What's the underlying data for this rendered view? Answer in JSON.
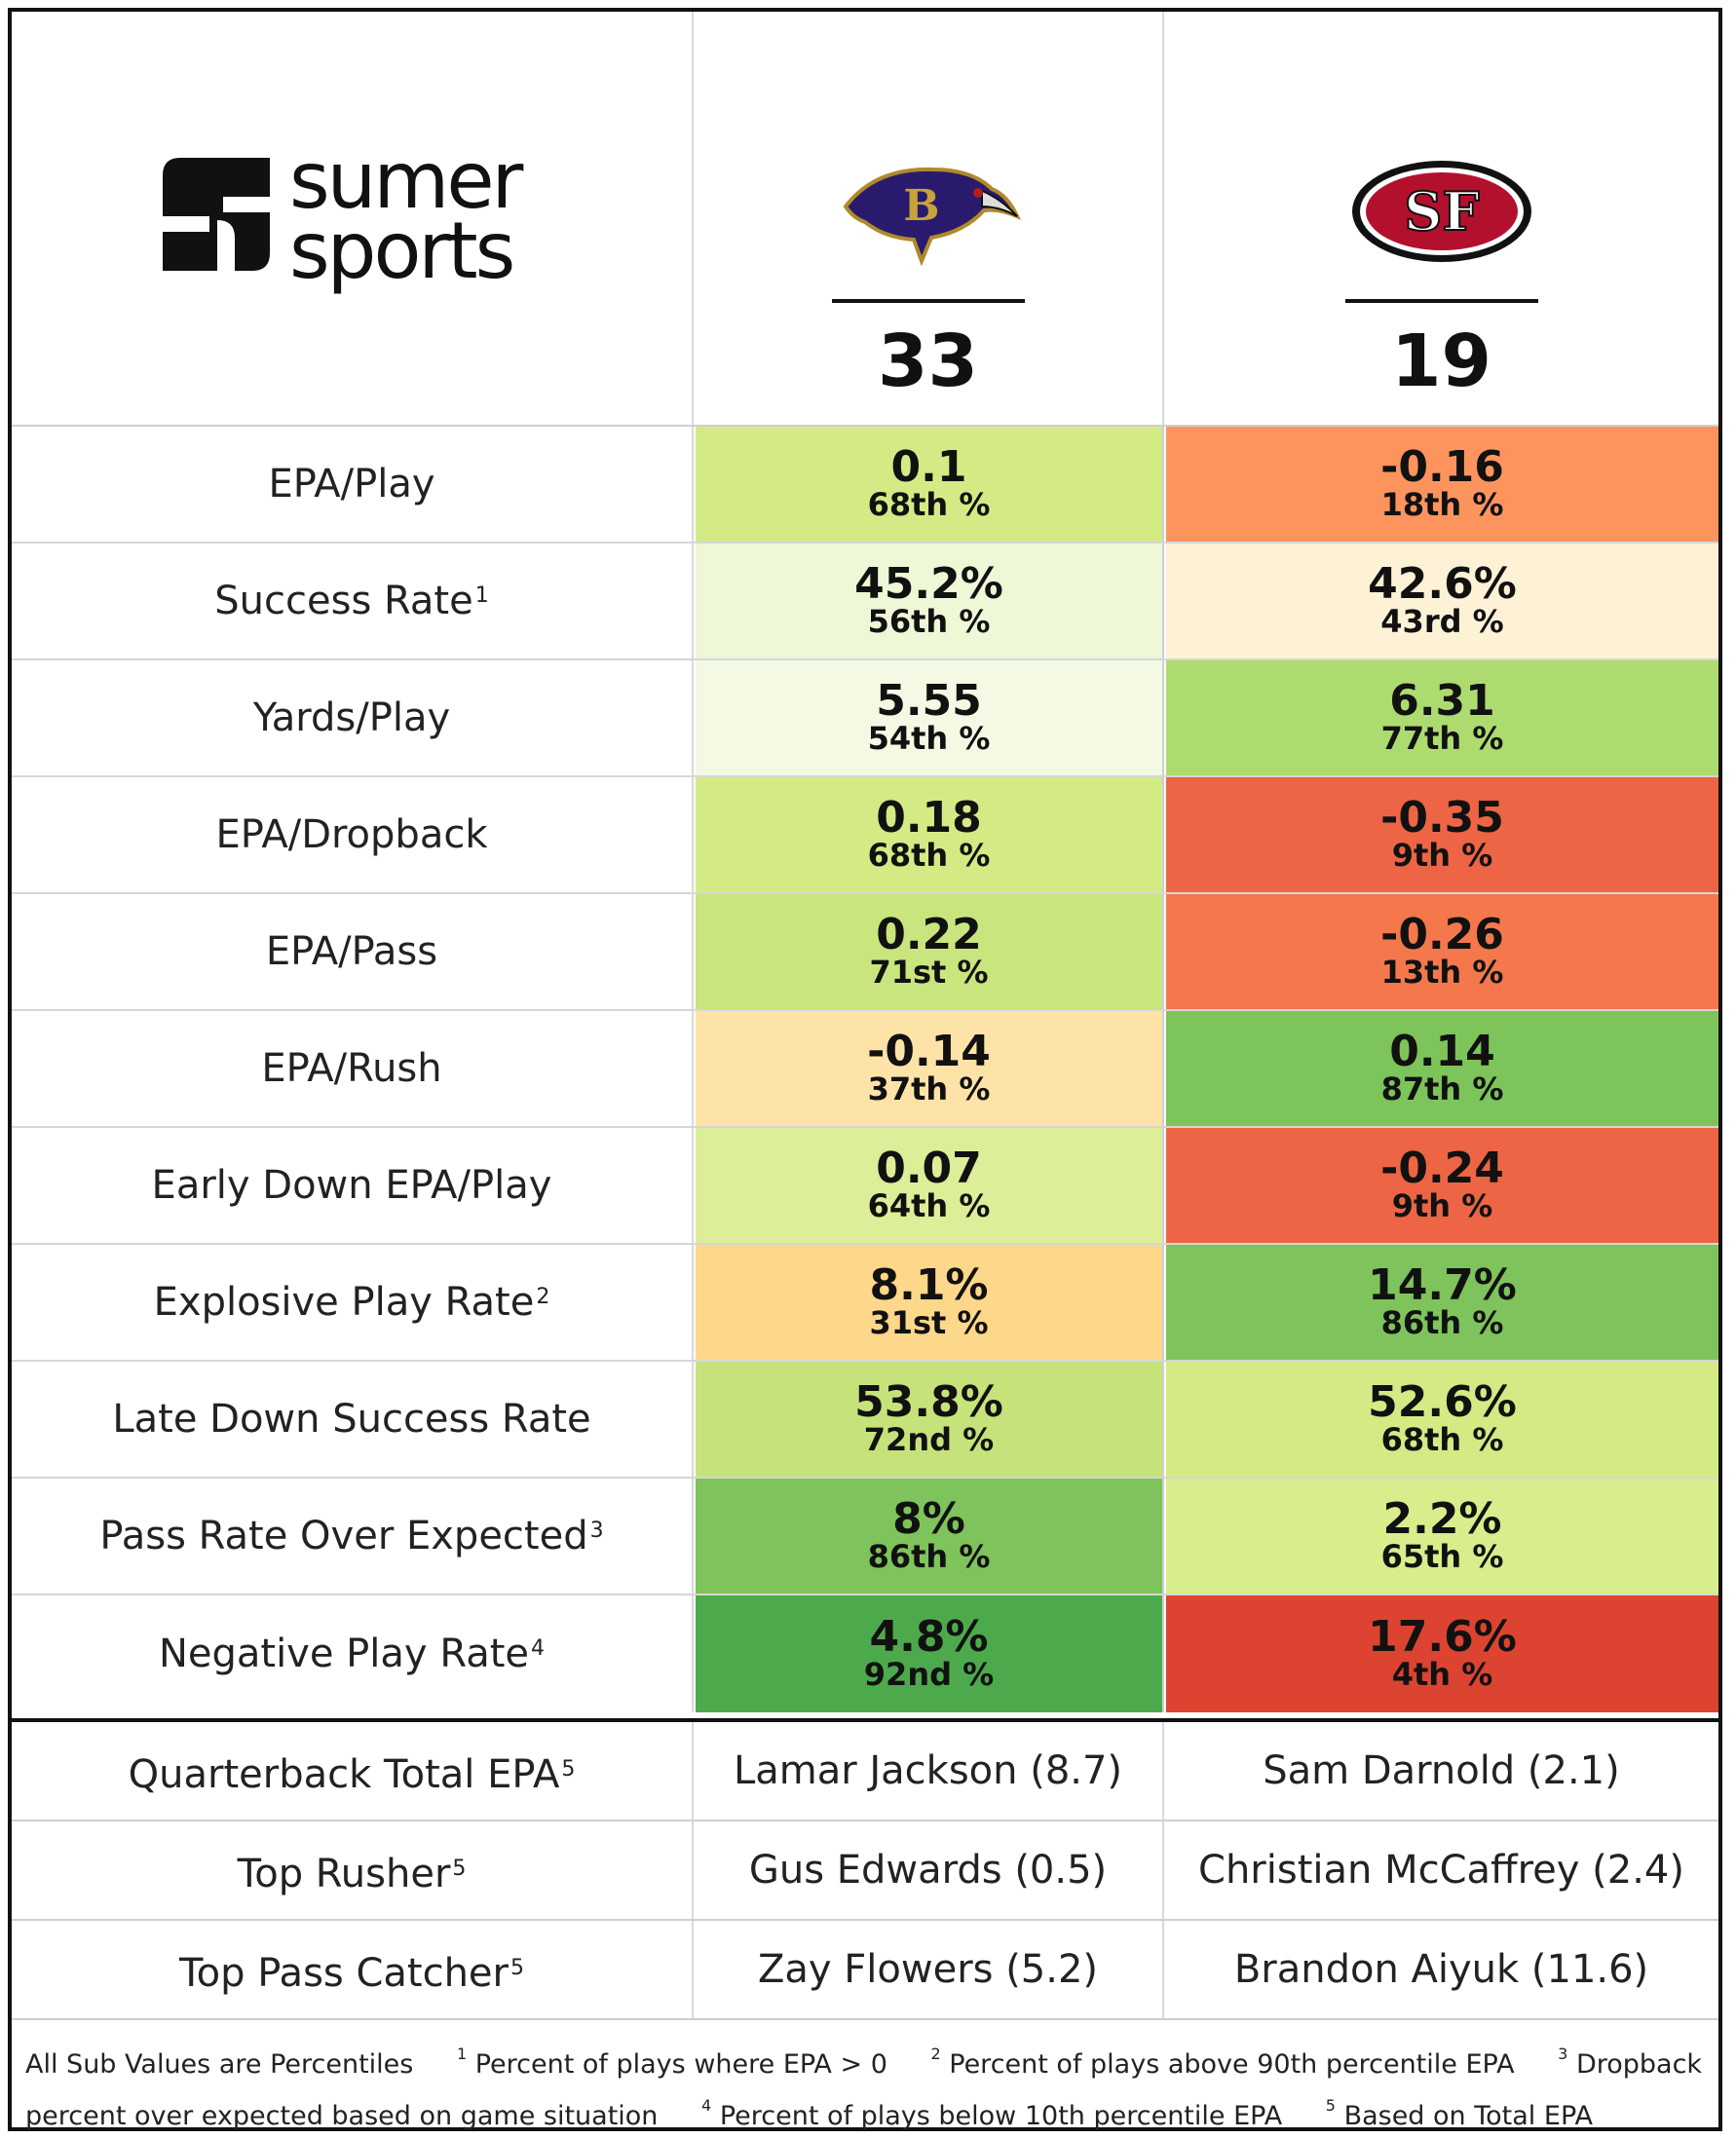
{
  "brand": {
    "line1": "sumer",
    "line2": "sports"
  },
  "teams": {
    "home": {
      "name": "Baltimore Ravens",
      "logo": "ravens-logo",
      "score": "33"
    },
    "away": {
      "name": "San Francisco 49ers",
      "logo": "49ers-logo",
      "score": "19"
    }
  },
  "metrics": [
    {
      "label": "EPA/Play",
      "note": "",
      "home": {
        "value": "0.1",
        "pct": "68th %",
        "color": "#d4ea85"
      },
      "away": {
        "value": "-0.16",
        "pct": "18th %",
        "color": "#fd945e"
      }
    },
    {
      "label": "Success Rate",
      "note": "1",
      "home": {
        "value": "45.2%",
        "pct": "56th %",
        "color": "#eef7d6"
      },
      "away": {
        "value": "42.6%",
        "pct": "43rd %",
        "color": "#fef2d6"
      }
    },
    {
      "label": "Yards/Play",
      "note": "",
      "home": {
        "value": "5.55",
        "pct": "54th %",
        "color": "#f4f9e3"
      },
      "away": {
        "value": "6.31",
        "pct": "77th %",
        "color": "#aedb6f"
      }
    },
    {
      "label": "EPA/Dropback",
      "note": "",
      "home": {
        "value": "0.18",
        "pct": "68th %",
        "color": "#d4ea85"
      },
      "away": {
        "value": "-0.35",
        "pct": "9th %",
        "color": "#ed6544"
      }
    },
    {
      "label": "EPA/Pass",
      "note": "",
      "home": {
        "value": "0.22",
        "pct": "71st %",
        "color": "#c9e57e"
      },
      "away": {
        "value": "-0.26",
        "pct": "13th %",
        "color": "#f4784c"
      }
    },
    {
      "label": "EPA/Rush",
      "note": "",
      "home": {
        "value": "-0.14",
        "pct": "37th %",
        "color": "#fee3a8"
      },
      "away": {
        "value": "0.14",
        "pct": "87th %",
        "color": "#7dc45a"
      }
    },
    {
      "label": "Early Down EPA/Play",
      "note": "",
      "home": {
        "value": "0.07",
        "pct": "64th %",
        "color": "#dcee97"
      },
      "away": {
        "value": "-0.24",
        "pct": "9th %",
        "color": "#ed6544"
      }
    },
    {
      "label": "Explosive Play Rate",
      "note": "2",
      "home": {
        "value": "8.1%",
        "pct": "31st %",
        "color": "#fdd78a"
      },
      "away": {
        "value": "14.7%",
        "pct": "86th %",
        "color": "#7ec35b"
      }
    },
    {
      "label": "Late Down Success Rate",
      "note": "",
      "home": {
        "value": "53.8%",
        "pct": "72nd %",
        "color": "#c6e37b"
      },
      "away": {
        "value": "52.6%",
        "pct": "68th %",
        "color": "#d4ea85"
      }
    },
    {
      "label": "Pass Rate Over Expected",
      "note": "3",
      "home": {
        "value": "8%",
        "pct": "86th %",
        "color": "#7ec35b"
      },
      "away": {
        "value": "2.2%",
        "pct": "65th %",
        "color": "#d8ed8c"
      }
    },
    {
      "label": "Negative Play Rate",
      "note": "4",
      "home": {
        "value": "4.8%",
        "pct": "92nd %",
        "color": "#4daa4c"
      },
      "away": {
        "value": "17.6%",
        "pct": "4th %",
        "color": "#dd4331"
      }
    }
  ],
  "players": [
    {
      "label": "Quarterback Total EPA",
      "note": "5",
      "home": "Lamar Jackson (8.7)",
      "away": "Sam Darnold (2.1)"
    },
    {
      "label": "Top Rusher",
      "note": "5",
      "home": "Gus Edwards (0.5)",
      "away": "Christian McCaffrey (2.4)"
    },
    {
      "label": "Top Pass Catcher",
      "note": "5",
      "home": "Zay Flowers (5.2)",
      "away": "Brandon Aiyuk (11.6)"
    }
  ],
  "footnotes": {
    "intro": "All Sub Values are Percentiles",
    "items": [
      {
        "num": "1",
        "text": "Percent of plays where EPA > 0"
      },
      {
        "num": "2",
        "text": "Percent of plays above 90th percentile EPA"
      },
      {
        "num": "3",
        "text": "Dropback percent over expected based on game situation"
      },
      {
        "num": "4",
        "text": "Percent of plays below 10th percentile EPA"
      },
      {
        "num": "5",
        "text": "Based on Total EPA"
      }
    ]
  }
}
